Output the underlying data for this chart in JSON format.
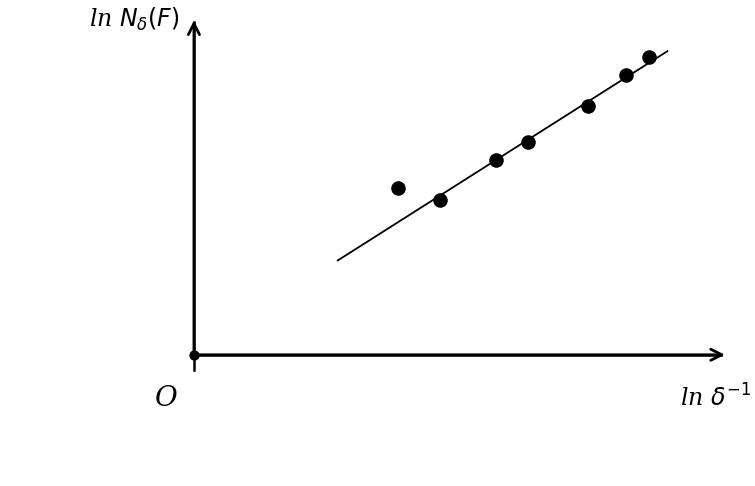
{
  "scatter_x": [
    2.2,
    2.65,
    3.25,
    3.6,
    4.25,
    4.65,
    4.9
  ],
  "scatter_y": [
    2.75,
    2.55,
    3.2,
    3.5,
    4.1,
    4.6,
    4.9
  ],
  "line_x_start": 1.55,
  "line_x_end": 5.1,
  "line_slope": 0.97,
  "line_intercept": 0.05,
  "origin_x": 0.0,
  "origin_y": 0.0,
  "xlim": [
    -0.3,
    5.8
  ],
  "ylim": [
    -1.2,
    5.6
  ],
  "scatter_color": "#000000",
  "line_color": "#000000",
  "scatter_size": 110,
  "background_color": "#ffffff",
  "xlabel": "ln $\\delta^{-1}$",
  "ylabel": "ln $N_{\\delta}(F)$",
  "origin_label": "O"
}
